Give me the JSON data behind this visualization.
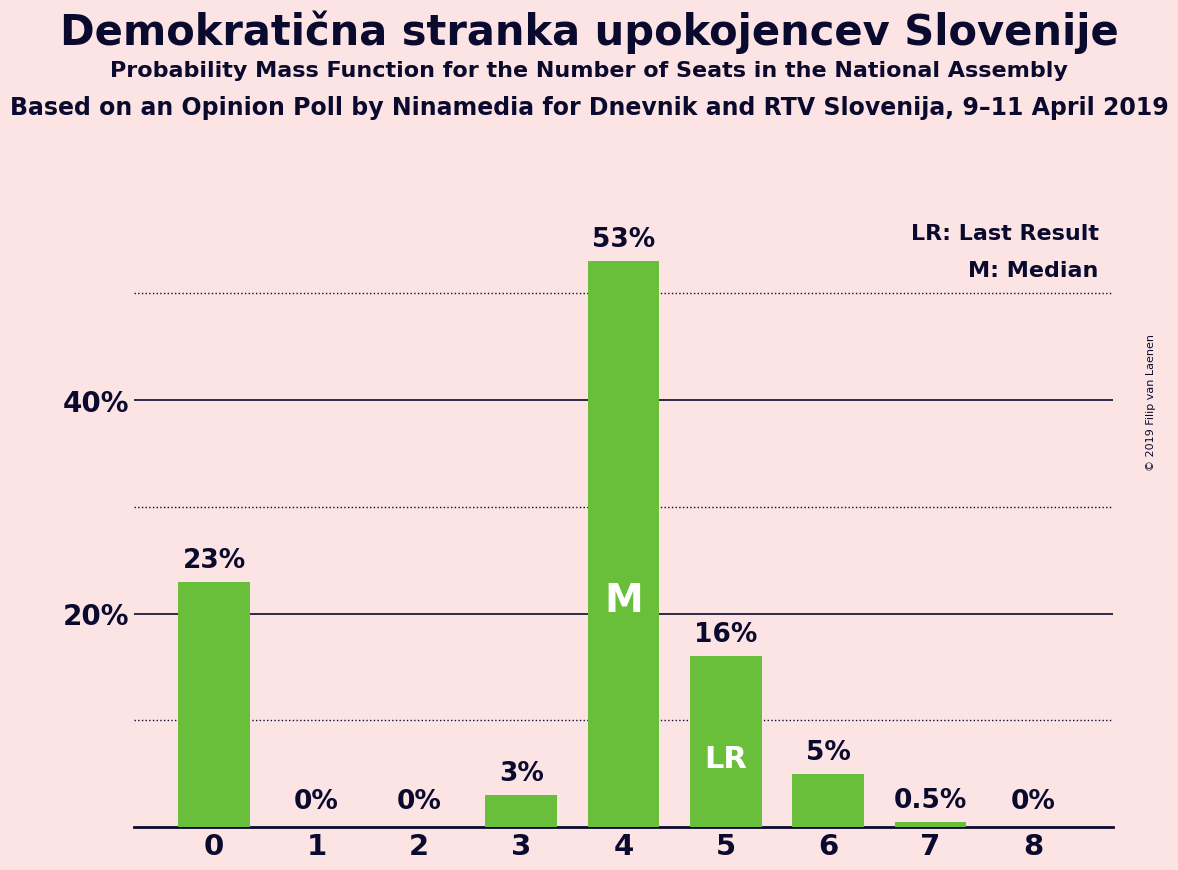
{
  "title": "Demokratična stranka upokojencev Slovenije",
  "subtitle1": "Probability Mass Function for the Number of Seats in the National Assembly",
  "subtitle2": "Based on an Opinion Poll by Ninamedia for Dnevnik and RTV Slovenija, 9–11 April 2019",
  "watermark": "© 2019 Filip van Laenen",
  "categories": [
    0,
    1,
    2,
    3,
    4,
    5,
    6,
    7,
    8
  ],
  "values": [
    23,
    0,
    0,
    3,
    53,
    16,
    5,
    0.5,
    0
  ],
  "bar_labels": [
    "23%",
    "0%",
    "0%",
    "3%",
    "53%",
    "16%",
    "5%",
    "0.5%",
    "0%"
  ],
  "bar_color": "#6abf3a",
  "background_color": "#fce4e4",
  "text_color": "#0a0a2e",
  "median_bar": 4,
  "lr_bar": 5,
  "median_label": "M",
  "lr_label": "LR",
  "legend_lr": "LR: Last Result",
  "legend_m": "M: Median",
  "solid_gridlines": [
    20,
    40
  ],
  "dotted_gridlines": [
    10,
    30,
    50
  ],
  "ylim": [
    0,
    58
  ],
  "title_fontsize": 30,
  "subtitle1_fontsize": 16,
  "subtitle2_fontsize": 17
}
